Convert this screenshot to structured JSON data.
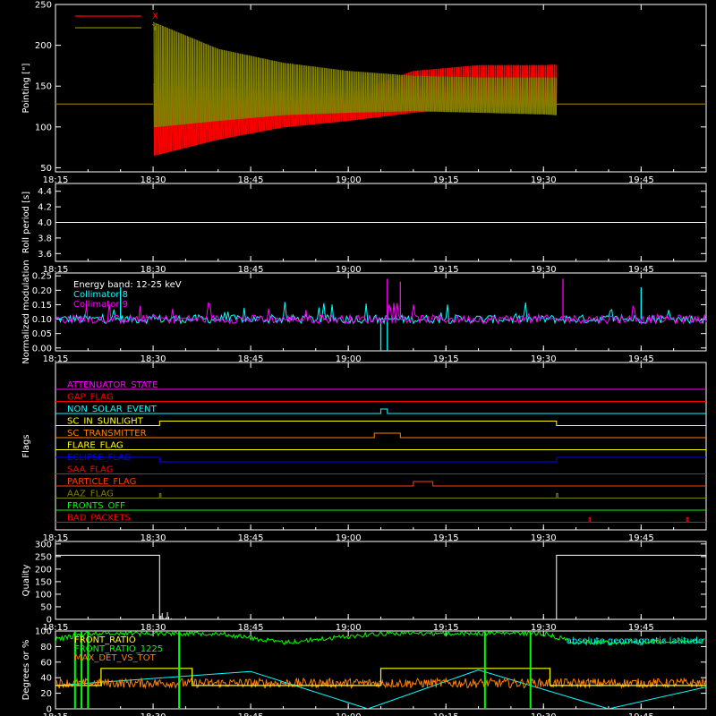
{
  "window": {
    "title": ""
  },
  "chart_data": {
    "type": "line",
    "x_axis": {
      "unit": "time",
      "range": [
        "18:15",
        "19:55"
      ],
      "tick_labels": [
        "18:15",
        "18:30",
        "18:45",
        "19:00",
        "19:15",
        "19:30",
        "19:45"
      ]
    },
    "panels": [
      {
        "id": "pointing",
        "ylabel": "Pointing [\"]",
        "ylim": [
          45,
          250
        ],
        "yticks": [
          50,
          100,
          150,
          200,
          250
        ],
        "legend": {
          "placement": "top-left",
          "entries": [
            {
              "name": "X",
              "color": "#ff0000"
            },
            {
              "name": "Y",
              "color": "#808000"
            }
          ]
        },
        "series": [
          {
            "name": "Y",
            "color": "#808000",
            "flat_before": {
              "x": [
                "18:15",
                "18:30"
              ],
              "y": 128
            },
            "envelope": {
              "x": [
                "18:30",
                "18:40",
                "18:50",
                "19:00",
                "19:10",
                "19:20",
                "19:30",
                "19:32"
              ],
              "upper": [
                228,
                195,
                178,
                168,
                162,
                160,
                160,
                160
              ],
              "lower": [
                100,
                108,
                115,
                118,
                120,
                118,
                116,
                115
              ]
            },
            "flat_after": {
              "x": [
                "19:32",
                "19:55"
              ],
              "y": 128
            }
          },
          {
            "name": "X",
            "color": "#ff0000",
            "flat_before": {
              "x": [
                "18:15",
                "18:30"
              ],
              "y": 128
            },
            "envelope": {
              "x": [
                "18:30",
                "18:40",
                "18:50",
                "19:00",
                "19:10",
                "19:20",
                "19:30",
                "19:32"
              ],
              "upper": [
                152,
                148,
                143,
                140,
                168,
                175,
                175,
                176
              ],
              "lower": [
                65,
                85,
                100,
                108,
                118,
                125,
                125,
                126
              ]
            },
            "flat_after": {
              "x": [
                "19:32",
                "19:55"
              ],
              "y": 128
            }
          }
        ]
      },
      {
        "id": "roll",
        "ylabel": "Roll period [s]",
        "ylim": [
          3.5,
          4.5
        ],
        "yticks": [
          3.6,
          3.8,
          4.0,
          4.2,
          4.4
        ],
        "series": [
          {
            "name": "",
            "color": "#ffffff",
            "x": [
              "18:15",
              "19:55"
            ],
            "y": [
              4.0,
              4.0
            ]
          }
        ]
      },
      {
        "id": "modulation",
        "ylabel": "Normalized modulation",
        "ylim": [
          -0.01,
          0.26
        ],
        "yticks": [
          0.0,
          0.05,
          0.1,
          0.15,
          0.2,
          0.25
        ],
        "legend": {
          "placement": "top-left",
          "entries": [
            {
              "name": "Energy band: 12-25 keV",
              "color": "#ffffff"
            },
            {
              "name": "Collimator 8",
              "color": "#00ffff"
            },
            {
              "name": "Collimator 9",
              "color": "#ff00ff"
            }
          ]
        },
        "series": [
          {
            "name": "Collimator 8",
            "color": "#00ffff",
            "baseline": 0.1,
            "spikes": {
              "x": [
                "19:05",
                "19:06",
                "18:25",
                "19:45"
              ],
              "y": [
                -0.01,
                -0.01,
                0.21,
                0.21
              ]
            }
          },
          {
            "name": "Collimator 9",
            "color": "#ff00ff",
            "baseline": 0.1,
            "spikes": {
              "x": [
                "19:06",
                "19:08",
                "19:33"
              ],
              "y": [
                0.24,
                0.23,
                0.24
              ]
            }
          }
        ]
      },
      {
        "id": "flags",
        "ylabel": "Flags",
        "rows": [
          {
            "name": "ATTENUATOR_STATE",
            "color": "#ff00ff",
            "x": [
              [
                "18:15",
                "19:55"
              ]
            ]
          },
          {
            "name": "GAP_FLAG",
            "color": "#ff0000",
            "x": [
              [
                "18:15",
                "19:55"
              ]
            ]
          },
          {
            "name": "NON_SOLAR_EVENT",
            "color": "#00ffff",
            "high": [
              [
                "19:05",
                "19:06"
              ]
            ]
          },
          {
            "name": "SC_IN_SUNLIGHT",
            "color": "#ffff00",
            "high": [
              [
                "18:31",
                "19:32"
              ]
            ]
          },
          {
            "name": "SC_TRANSMITTER",
            "color": "#ff8000",
            "high": [
              [
                "19:04",
                "19:08"
              ]
            ]
          },
          {
            "name": "FLARE_FLAG",
            "color": "#ffff00",
            "high": []
          },
          {
            "name": "ECLIPSE_FLAG",
            "color": "#0000ff",
            "high": [
              [
                "18:15",
                "18:31"
              ],
              [
                "19:32",
                "19:55"
              ]
            ]
          },
          {
            "name": "SAA_FLAG",
            "color": "#ff0000",
            "high": []
          },
          {
            "name": "PARTICLE_FLAG",
            "color": "#ff4000",
            "high": [
              [
                "19:10",
                "19:13"
              ]
            ]
          },
          {
            "name": "AAZ_FLAG",
            "color": "#808000",
            "high": [
              [
                "18:31",
                "18:31"
              ],
              [
                "19:32",
                "19:32"
              ]
            ]
          },
          {
            "name": "FRONTS_OFF",
            "color": "#00ff00",
            "high": []
          },
          {
            "name": "BAD_PACKETS",
            "color": "#ff0000",
            "high": [
              [
                "19:37",
                "19:37"
              ],
              [
                "19:52",
                "19:52"
              ]
            ]
          }
        ]
      },
      {
        "id": "quality",
        "ylabel": "Quality",
        "ylim": [
          0,
          310
        ],
        "yticks": [
          0,
          50,
          100,
          150,
          200,
          250,
          300
        ],
        "series": [
          {
            "name": "",
            "color": "#ffffff",
            "x": [
              "18:15",
              "18:31",
              "18:31",
              "18:32",
              "19:32",
              "19:32",
              "19:55"
            ],
            "y": [
              255,
              255,
              0,
              0,
              0,
              255,
              255
            ]
          }
        ]
      },
      {
        "id": "aux",
        "ylabel": "Degrees or %",
        "ylim": [
          0,
          100
        ],
        "yticks": [
          0,
          20,
          40,
          60,
          80,
          100
        ],
        "legend": {
          "placement": "top-left",
          "entries": [
            {
              "name": "FRONT_RATIO",
              "color": "#ffff00"
            },
            {
              "name": "FRONT_RATIO_1225",
              "color": "#00ff00"
            },
            {
              "name": "MAX_DET_VS_TOT",
              "color": "#ff8000"
            }
          ]
        },
        "annotation": {
          "text": "absolute geomagnetic latitude",
          "color": "#00ffff",
          "placement": "top-right"
        },
        "series": [
          {
            "name": "FRONT_RATIO",
            "color": "#ffff00",
            "x": [
              "18:15",
              "18:22",
              "18:22",
              "18:36",
              "18:36",
              "19:05",
              "19:05",
              "19:31",
              "19:31",
              "19:55"
            ],
            "y": [
              30,
              30,
              52,
              52,
              30,
              30,
              52,
              52,
              30,
              30
            ]
          },
          {
            "name": "FRONT_RATIO_1225",
            "color": "#00ff00",
            "x": [
              "18:15",
              "18:20",
              "18:40",
              "18:50",
              "19:05",
              "19:20",
              "19:30",
              "19:35",
              "19:55"
            ],
            "y": [
              92,
              100,
              100,
              88,
              100,
              100,
              100,
              88,
              90
            ]
          },
          {
            "name": "MAX_DET_VS_TOT",
            "color": "#ff8000",
            "x": [
              "18:15",
              "19:55"
            ],
            "y": [
              33,
              33
            ]
          },
          {
            "name": "absolute geomagnetic latitude",
            "color": "#00ffff",
            "x": [
              "18:15",
              "18:45",
              "19:03",
              "19:20",
              "19:40",
              "19:55"
            ],
            "y": [
              30,
              48,
              0,
              50,
              0,
              28
            ]
          }
        ]
      }
    ]
  }
}
